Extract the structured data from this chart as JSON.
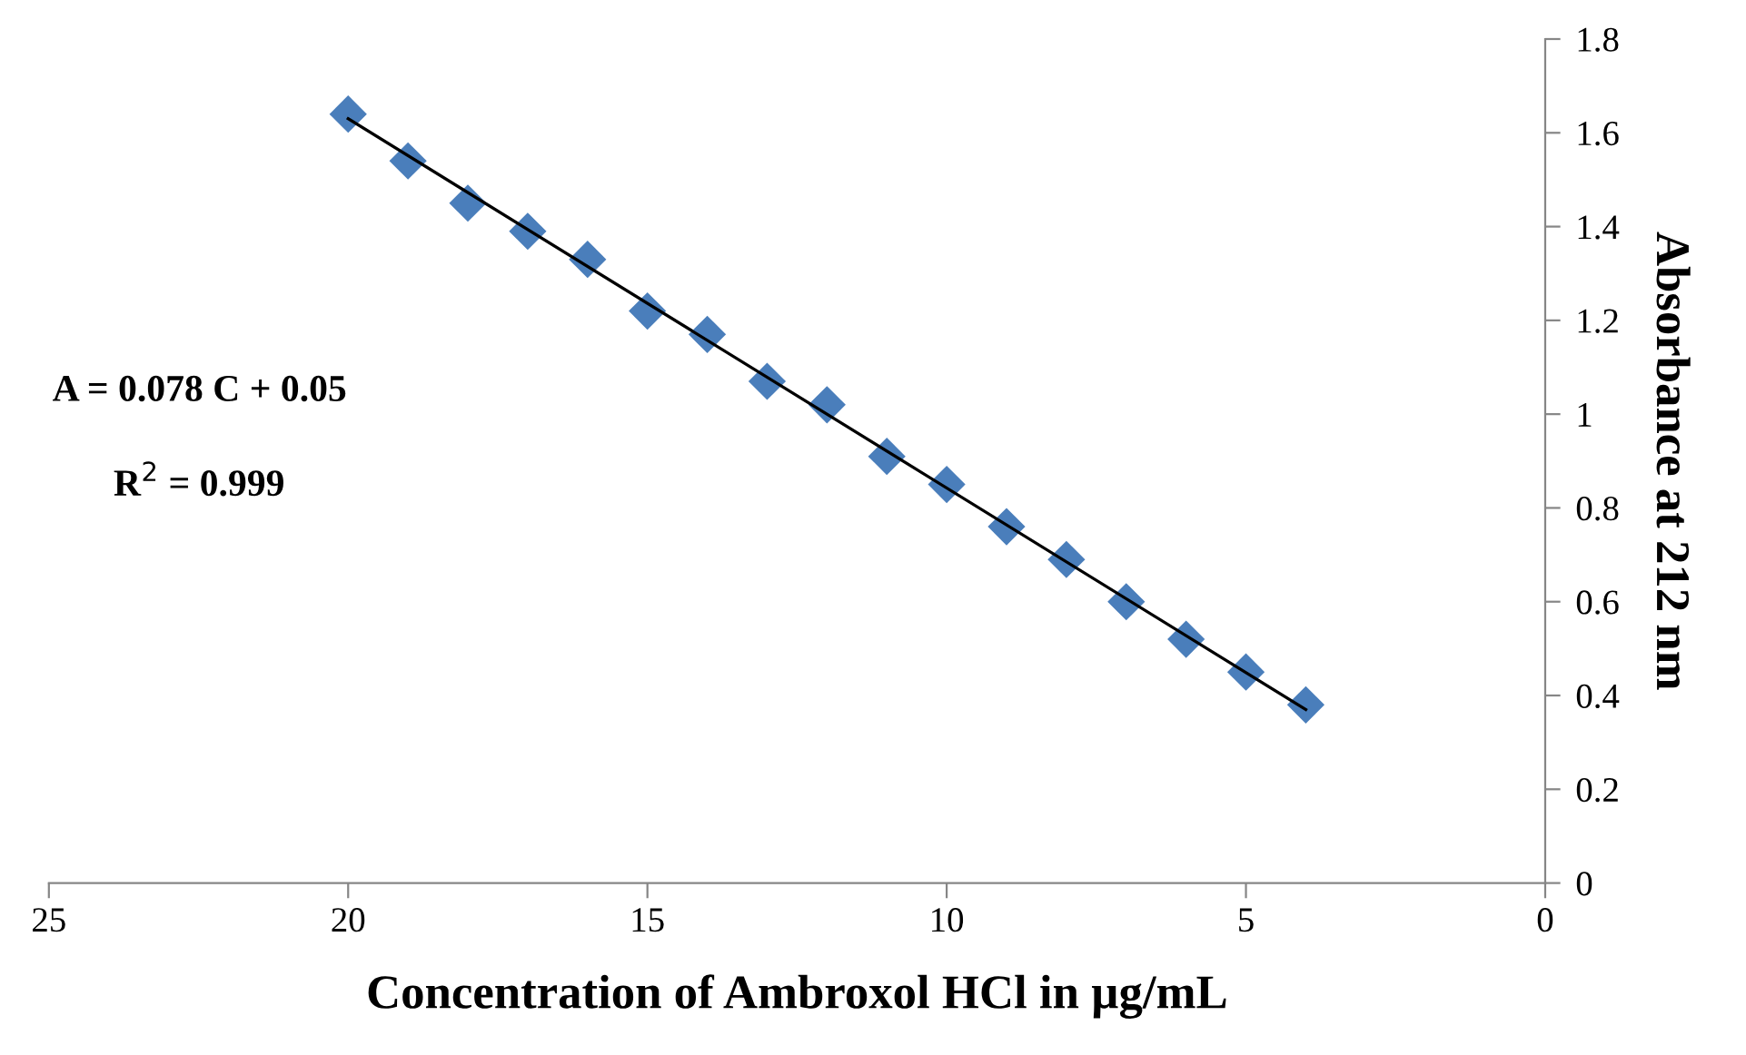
{
  "chart_data": {
    "type": "scatter",
    "xlabel": "Concentration of Ambroxol HCl in µg/mL",
    "ylabel": "Absorbance at 212 nm",
    "x": [
      20,
      19,
      18,
      17,
      16,
      15,
      14,
      13,
      12,
      11,
      10,
      9,
      8,
      7,
      6,
      5,
      4
    ],
    "series": [
      {
        "color": "#4a7ebb",
        "marker": "diamond",
        "values": [
          1.64,
          1.54,
          1.45,
          1.39,
          1.33,
          1.22,
          1.17,
          1.07,
          1.02,
          0.91,
          0.85,
          0.76,
          0.69,
          0.6,
          0.52,
          0.45,
          0.38
        ]
      },
      {
        "type": "line",
        "color": "#000000",
        "x": [
          20,
          4
        ],
        "values": [
          1.63,
          0.37
        ],
        "marker": "none",
        "line_style": "solid"
      }
    ],
    "xlim": [
      25,
      0
    ],
    "xticks": [
      25,
      20,
      15,
      10,
      5,
      0
    ],
    "ylim": [
      0,
      1.8
    ],
    "yticks": [
      {
        "value": 0,
        "label": "0"
      },
      0.2,
      0.4,
      0.6,
      0.8,
      {
        "value": 1,
        "label": "1"
      },
      1.2,
      1.4,
      1.6,
      1.8
    ],
    "grid": false,
    "legend": false,
    "annotations": [
      "A = 0.078 C + 0.05",
      "R$^{2}$ = 0.999"
    ]
  }
}
